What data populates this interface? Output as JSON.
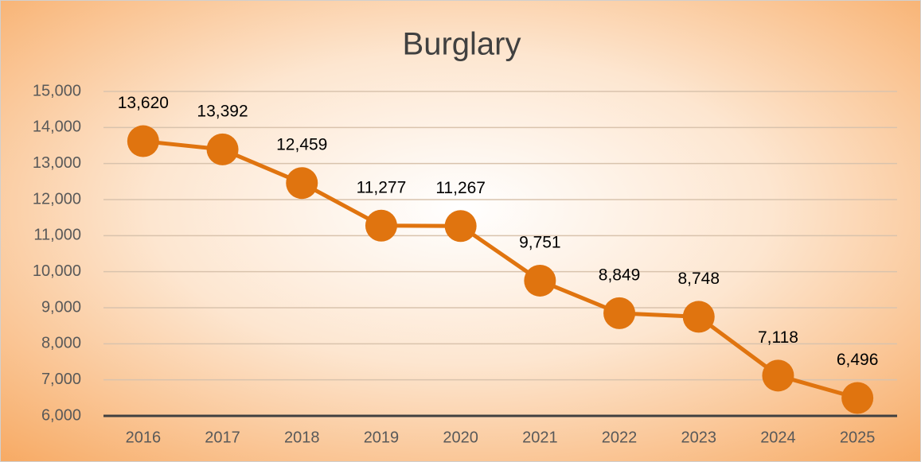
{
  "chart_data": {
    "type": "line",
    "title": "Burglary",
    "categories": [
      "2016",
      "2017",
      "2018",
      "2019",
      "2020",
      "2021",
      "2022",
      "2023",
      "2024",
      "2025"
    ],
    "series": [
      {
        "name": "Burglary",
        "color": "#e0740f",
        "values": [
          13620,
          13392,
          12459,
          11277,
          11267,
          9751,
          8849,
          8748,
          7118,
          6496
        ],
        "value_labels": [
          "13,620",
          "13,392",
          "12,459",
          "11,277",
          "11,267",
          "9,751",
          "8,849",
          "8,748",
          "7,118",
          "6,496"
        ]
      }
    ],
    "ylim": [
      6000,
      15000
    ],
    "yticks": [
      {
        "value": 6000,
        "label": "6,000"
      },
      {
        "value": 7000,
        "label": "7,000"
      },
      {
        "value": 8000,
        "label": "8,000"
      },
      {
        "value": 9000,
        "label": "9,000"
      },
      {
        "value": 10000,
        "label": "10,000"
      },
      {
        "value": 11000,
        "label": "11,000"
      },
      {
        "value": 12000,
        "label": "12,000"
      },
      {
        "value": 13000,
        "label": "13,000"
      },
      {
        "value": 14000,
        "label": "14,000"
      },
      {
        "value": 15000,
        "label": "15,000"
      }
    ],
    "grid": true
  }
}
